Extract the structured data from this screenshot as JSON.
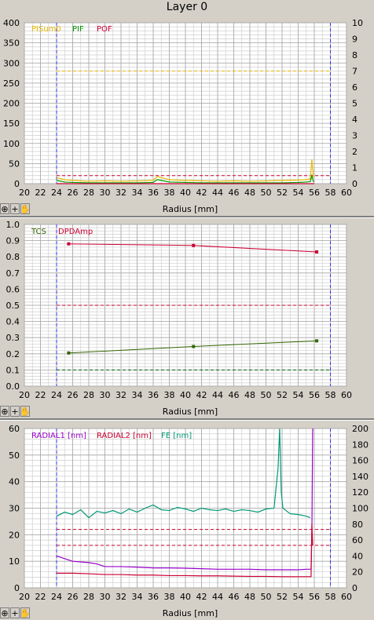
{
  "window": {
    "title": "Layer 0"
  },
  "toolbar": {
    "zoom_icon": "zoom-icon",
    "crosshair_icon": "crosshair-icon",
    "hand_icon": "hand-icon"
  },
  "chart_data": [
    {
      "type": "line",
      "xlabel": "Radius [mm]",
      "xlim": [
        20,
        60
      ],
      "xticks": [
        "20",
        "22",
        "24",
        "26",
        "28",
        "30",
        "32",
        "34",
        "36",
        "38",
        "40",
        "42",
        "44",
        "46",
        "48",
        "50",
        "52",
        "54",
        "56",
        "58",
        "60"
      ],
      "ylim": [
        0,
        400
      ],
      "yticks": [
        "0",
        "50",
        "100",
        "150",
        "200",
        "250",
        "300",
        "350",
        "400"
      ],
      "y2lim": [
        0,
        10
      ],
      "y2ticks": [
        "0",
        "1",
        "2",
        "3",
        "4",
        "5",
        "6",
        "7",
        "8",
        "9",
        "10"
      ],
      "grid": true,
      "vlines": [
        24,
        58
      ],
      "hlines": [
        {
          "value": 280,
          "color": "#e8b800"
        },
        {
          "value": 20,
          "color": "#cc0033"
        }
      ],
      "series": [
        {
          "name": "PISum0",
          "color": "#e8b800",
          "x": [
            24,
            25,
            26,
            28,
            30,
            32,
            34,
            36,
            36.5,
            37,
            38,
            40,
            42,
            44,
            46,
            48,
            50,
            52,
            54,
            55,
            55.5,
            55.7,
            55.9
          ],
          "values": [
            15,
            10,
            8,
            6,
            7,
            6,
            7,
            8,
            18,
            15,
            10,
            8,
            7,
            6,
            7,
            6,
            7,
            8,
            9,
            10,
            12,
            60,
            15
          ]
        },
        {
          "name": "PIF",
          "color": "#009900",
          "x": [
            24,
            25,
            26,
            28,
            30,
            32,
            34,
            36,
            36.5,
            37,
            38,
            40,
            42,
            44,
            46,
            48,
            50,
            52,
            54,
            55,
            55.5,
            55.7,
            55.9
          ],
          "values": [
            8,
            4,
            3,
            2,
            2,
            2,
            2,
            3,
            10,
            8,
            4,
            3,
            2,
            2,
            2,
            2,
            2,
            2,
            3,
            4,
            5,
            20,
            4
          ]
        },
        {
          "name": "POF",
          "color": "#cc0033",
          "x": [
            24,
            56
          ],
          "values": [
            0,
            0
          ]
        }
      ]
    },
    {
      "type": "line",
      "xlabel": "Radius [mm]",
      "xlim": [
        20,
        60
      ],
      "xticks": [
        "20",
        "22",
        "24",
        "26",
        "28",
        "30",
        "32",
        "34",
        "36",
        "38",
        "40",
        "42",
        "44",
        "46",
        "48",
        "50",
        "52",
        "54",
        "56",
        "58",
        "60"
      ],
      "ylim": [
        0,
        1
      ],
      "yticks": [
        "0.0",
        "0.1",
        "0.2",
        "0.3",
        "0.4",
        "0.5",
        "0.6",
        "0.7",
        "0.8",
        "0.9",
        "1.0"
      ],
      "grid": true,
      "vlines": [
        24,
        58
      ],
      "hlines": [
        {
          "value": 0.5,
          "color": "#cc0033"
        },
        {
          "value": 0.1,
          "color": "#006600"
        }
      ],
      "series": [
        {
          "name": "TCS",
          "color": "#336600",
          "x": [
            25.5,
            41,
            56.3
          ],
          "values": [
            0.205,
            0.245,
            0.28
          ]
        },
        {
          "name": "DPDAmp",
          "color": "#cc0033",
          "x": [
            25.5,
            41,
            56.3
          ],
          "values": [
            0.88,
            0.87,
            0.83
          ]
        }
      ]
    },
    {
      "type": "line",
      "xlabel": "Radius [mm]",
      "xlim": [
        20,
        60
      ],
      "xticks": [
        "20",
        "22",
        "24",
        "26",
        "28",
        "30",
        "32",
        "34",
        "36",
        "38",
        "40",
        "42",
        "44",
        "46",
        "48",
        "50",
        "52",
        "54",
        "56",
        "58",
        "60"
      ],
      "ylim": [
        0,
        60
      ],
      "yticks": [
        "0",
        "10",
        "20",
        "30",
        "40",
        "50",
        "60"
      ],
      "y2lim": [
        0,
        200
      ],
      "y2ticks": [
        "0",
        "20",
        "40",
        "60",
        "80",
        "100",
        "120",
        "140",
        "160",
        "180",
        "200"
      ],
      "grid": true,
      "vlines": [
        24,
        58
      ],
      "hlines": [
        {
          "value": 22,
          "color": "#cc0033"
        },
        {
          "value": 16,
          "color": "#cc0033"
        }
      ],
      "series": [
        {
          "name": "RADIAL1 [nm]",
          "color": "#9900cc",
          "x": [
            24,
            24.5,
            25,
            26,
            28,
            29,
            30,
            32,
            34,
            36,
            38,
            40,
            42,
            44,
            46,
            48,
            50,
            52,
            54,
            55,
            55.6,
            55.7,
            55.8
          ],
          "values": [
            12,
            11.5,
            11,
            10,
            9.5,
            9,
            8,
            8,
            7.8,
            7.5,
            7.5,
            7.4,
            7.2,
            7,
            7,
            7,
            6.8,
            6.8,
            6.8,
            7,
            7,
            20,
            60
          ]
        },
        {
          "name": "RADIAL2 [nm]",
          "color": "#cc0033",
          "x": [
            24,
            26,
            28,
            30,
            32,
            34,
            36,
            38,
            40,
            42,
            44,
            46,
            48,
            50,
            52,
            54,
            55,
            55.6,
            55.7,
            55.8
          ],
          "values": [
            5.5,
            5.5,
            5.3,
            5,
            5,
            4.8,
            4.8,
            4.6,
            4.6,
            4.5,
            4.5,
            4.4,
            4.3,
            4.3,
            4.2,
            4.2,
            4.2,
            4.2,
            24,
            16
          ]
        },
        {
          "name": "FE [nm]",
          "color": "#009977",
          "x": [
            24,
            25,
            26,
            27,
            28,
            29,
            30,
            31,
            32,
            33,
            34,
            35,
            36,
            37,
            38,
            39,
            40,
            41,
            42,
            43,
            44,
            45,
            46,
            47,
            48,
            49,
            50,
            51,
            51.5,
            51.7,
            51.9,
            52.1,
            52.5,
            53,
            54,
            55,
            55.5
          ],
          "values": [
            90,
            95,
            92,
            98,
            88,
            96,
            94,
            97,
            93,
            99,
            95,
            100,
            104,
            98,
            97,
            101,
            99,
            96,
            100,
            98,
            97,
            99,
            96,
            98,
            97,
            95,
            99,
            100,
            150,
            200,
            120,
            100,
            97,
            93,
            92,
            90,
            88
          ]
        }
      ]
    }
  ]
}
